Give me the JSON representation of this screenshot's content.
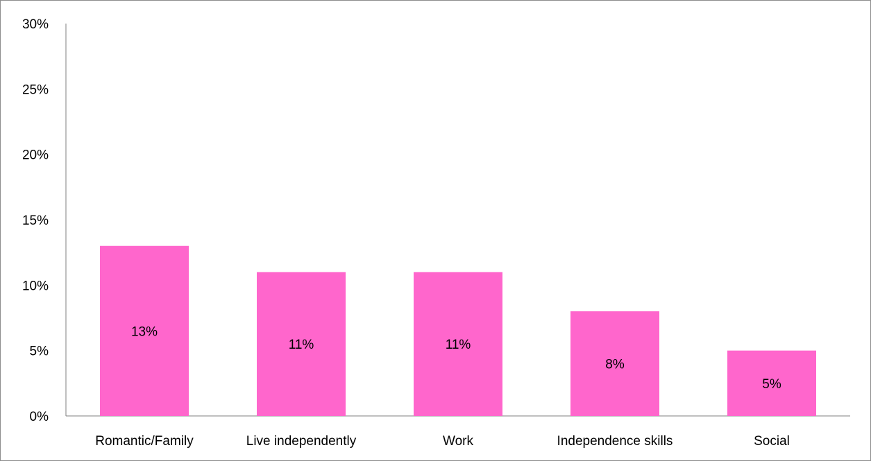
{
  "chart_data": {
    "type": "bar",
    "categories": [
      "Romantic/Family",
      "Live independently",
      "Work",
      "Independence skills",
      "Social"
    ],
    "values": [
      13,
      11,
      11,
      8,
      5
    ],
    "data_labels": [
      "13%",
      "11%",
      "11%",
      "8%",
      "5%"
    ],
    "ylim": [
      0,
      30
    ],
    "y_ticks": [
      0,
      5,
      10,
      15,
      20,
      25,
      30
    ],
    "y_tick_labels": [
      "0%",
      "5%",
      "10%",
      "15%",
      "20%",
      "25%",
      "30%"
    ],
    "grid": false,
    "legend": "none",
    "bar_color": "#FF66CC",
    "axis_color": "#7f7f7f"
  }
}
